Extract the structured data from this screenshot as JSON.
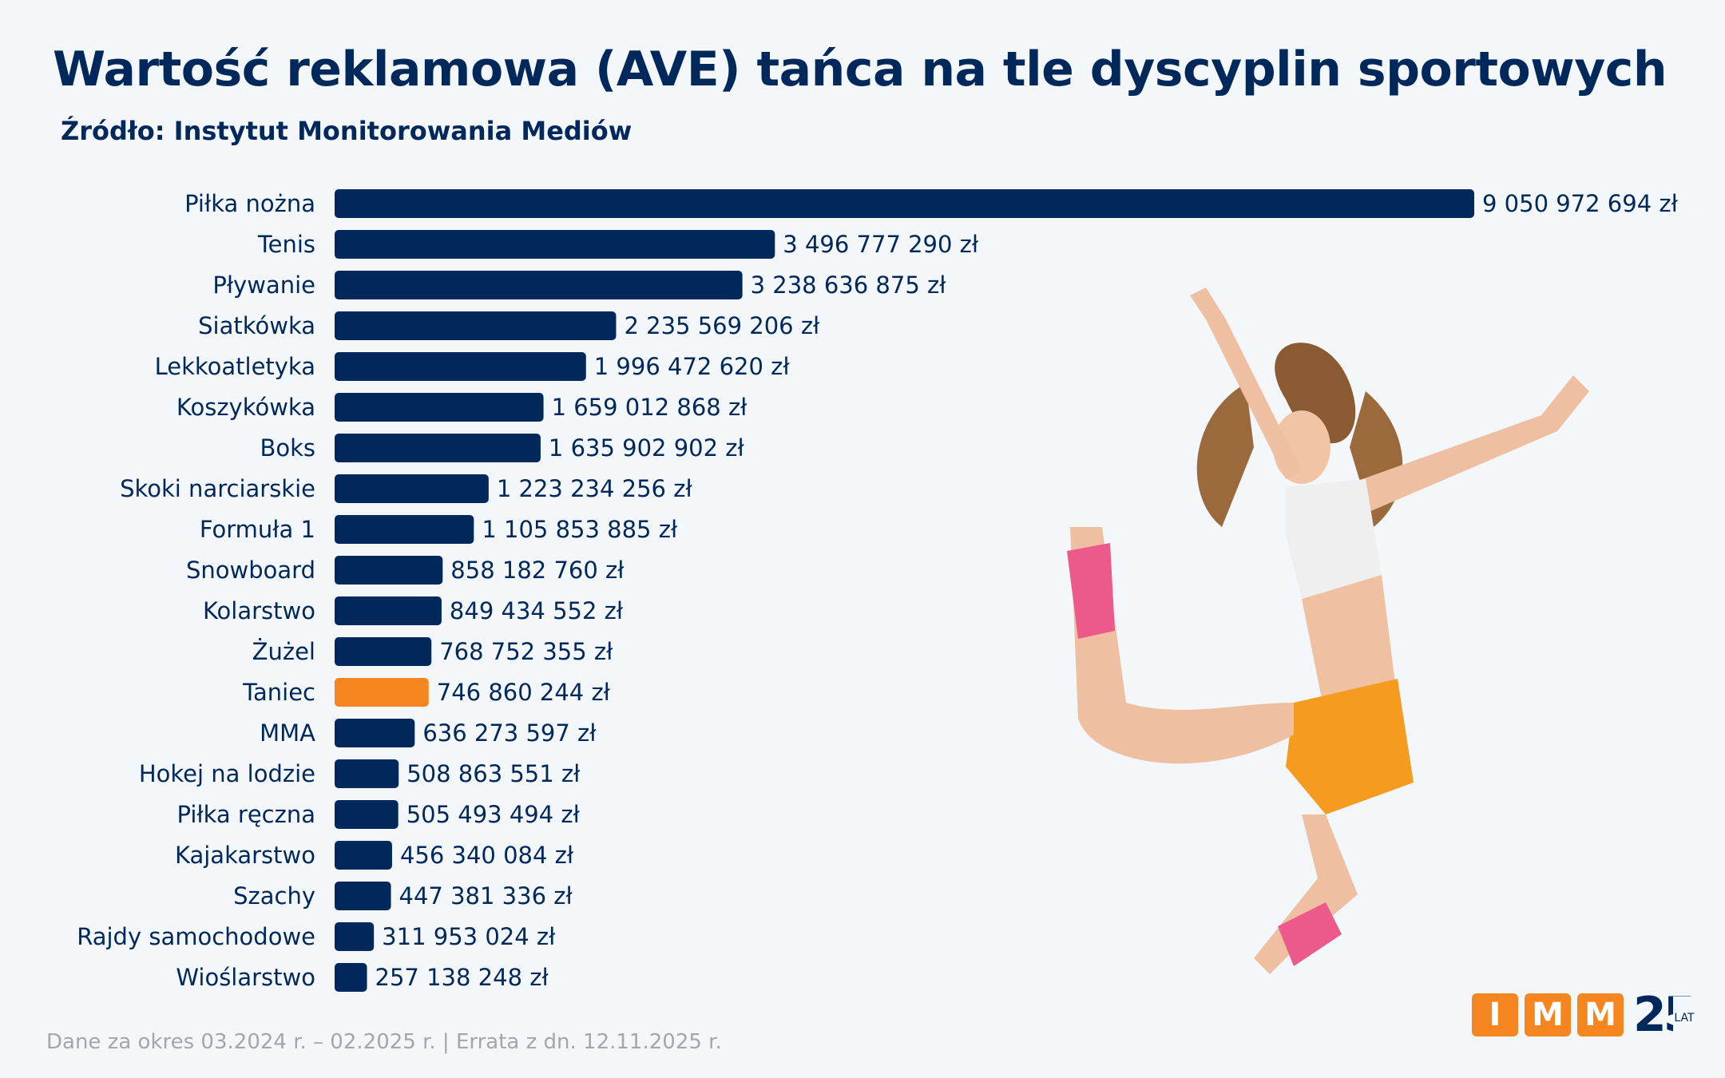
{
  "title": "Wartość reklamowa (AVE) tańca na tle dyscyplin sportowych",
  "subtitle": "Źródło: Instytut Monitorowania Mediów",
  "footer": "Dane za okres 03.2024 r. – 02.2025 r. | Errata z dn. 12.11.2025 r.",
  "logo": {
    "letters": [
      "I",
      "M",
      "M"
    ],
    "number": "25",
    "suffix": "LAT",
    "box_color": "#f5861f",
    "text_color": "#00285a"
  },
  "colors": {
    "bar": "#00285a",
    "highlight": "#f5861f",
    "background": "#f3f7fa"
  },
  "chart_data": {
    "type": "bar",
    "orientation": "horizontal",
    "grid": false,
    "legend": "none",
    "highlight_category": "Taniec",
    "value_suffix": " zł",
    "categories": [
      "Piłka nożna",
      "Tenis",
      "Pływanie",
      "Siatkówka",
      "Lekkoatletyka",
      "Koszykówka",
      "Boks",
      "Skoki narciarskie",
      "Formuła 1",
      "Snowboard",
      "Kolarstwo",
      "Żużel",
      "Taniec",
      "MMA",
      "Hokej na lodzie",
      "Piłka ręczna",
      "Kajakarstwo",
      "Szachy",
      "Rajdy samochodowe",
      "Wioślarstwo"
    ],
    "values": [
      9050972694,
      3496777290,
      3238636875,
      2235569206,
      1996472620,
      1659012868,
      1635902902,
      1223234256,
      1105853885,
      858182760,
      849434552,
      768752355,
      746860244,
      636273597,
      508863551,
      505493494,
      456340084,
      447381336,
      311953024,
      257138248
    ],
    "labels": [
      "9 050 972 694 zł",
      "3 496 777 290 zł",
      "3 238 636 875 zł",
      "2 235 569 206 zł",
      "1 996 472 620 zł",
      "1 659 012 868 zł",
      "1 635 902 902 zł",
      "1 223 234 256 zł",
      "1 105 853 885 zł",
      "858 182 760 zł",
      "849 434 552 zł",
      "768 752 355 zł",
      "746 860 244 zł",
      "636 273 597 zł",
      "508 863 551 zł",
      "505 493 494 zł",
      "456 340 084 zł",
      "447 381 336 zł",
      "311 953 024 zł",
      "257 138 248 zł"
    ]
  }
}
